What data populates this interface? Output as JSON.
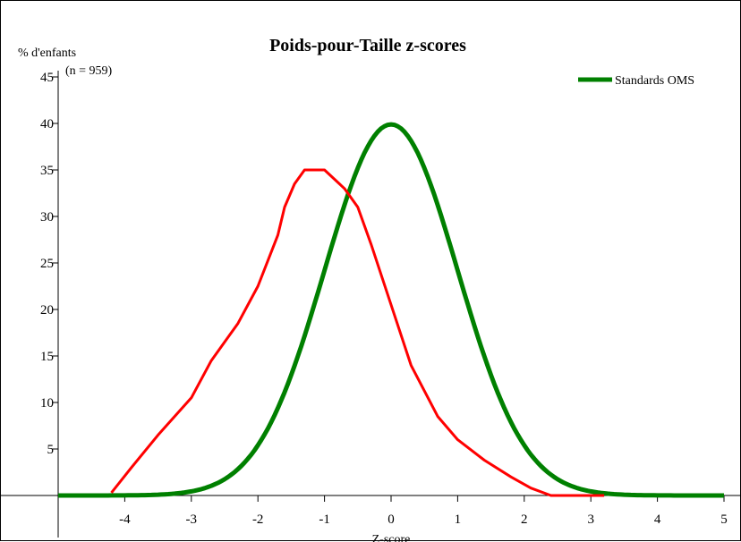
{
  "chart_data": {
    "type": "line",
    "title": "Poids-pour-Taille z-scores",
    "ylabel": "% d'enfants",
    "sample_note": "(n = 959)",
    "xlabel": "Z-score",
    "xlim": [
      -5,
      5
    ],
    "ylim": [
      0,
      45
    ],
    "x_ticks": [
      -4,
      -3,
      -2,
      -1,
      0,
      1,
      2,
      3,
      4,
      5
    ],
    "y_ticks": [
      5,
      10,
      15,
      20,
      25,
      30,
      35,
      40,
      45
    ],
    "grid": false,
    "legend_position": "top-right",
    "series": [
      {
        "color": "#ff0000",
        "points": [
          [
            -4.2,
            0.3
          ],
          [
            -3.9,
            3.0
          ],
          [
            -3.5,
            6.5
          ],
          [
            -3.0,
            10.5
          ],
          [
            -2.7,
            14.5
          ],
          [
            -2.3,
            18.5
          ],
          [
            -2.0,
            22.5
          ],
          [
            -1.7,
            28.0
          ],
          [
            -1.6,
            31.0
          ],
          [
            -1.45,
            33.5
          ],
          [
            -1.3,
            35.0
          ],
          [
            -1.0,
            35.0
          ],
          [
            -0.7,
            33.0
          ],
          [
            -0.5,
            31.0
          ],
          [
            -0.3,
            27.0
          ],
          [
            0.0,
            20.5
          ],
          [
            0.3,
            14.0
          ],
          [
            0.7,
            8.5
          ],
          [
            1.0,
            6.0
          ],
          [
            1.4,
            3.8
          ],
          [
            1.8,
            2.0
          ],
          [
            2.1,
            0.8
          ],
          [
            2.4,
            0.0
          ],
          [
            3.2,
            0.0
          ]
        ]
      },
      {
        "name": "Standards OMS",
        "color": "#008000",
        "distribution": "normal(0,1)",
        "x_range": [
          -5,
          5
        ]
      }
    ]
  }
}
